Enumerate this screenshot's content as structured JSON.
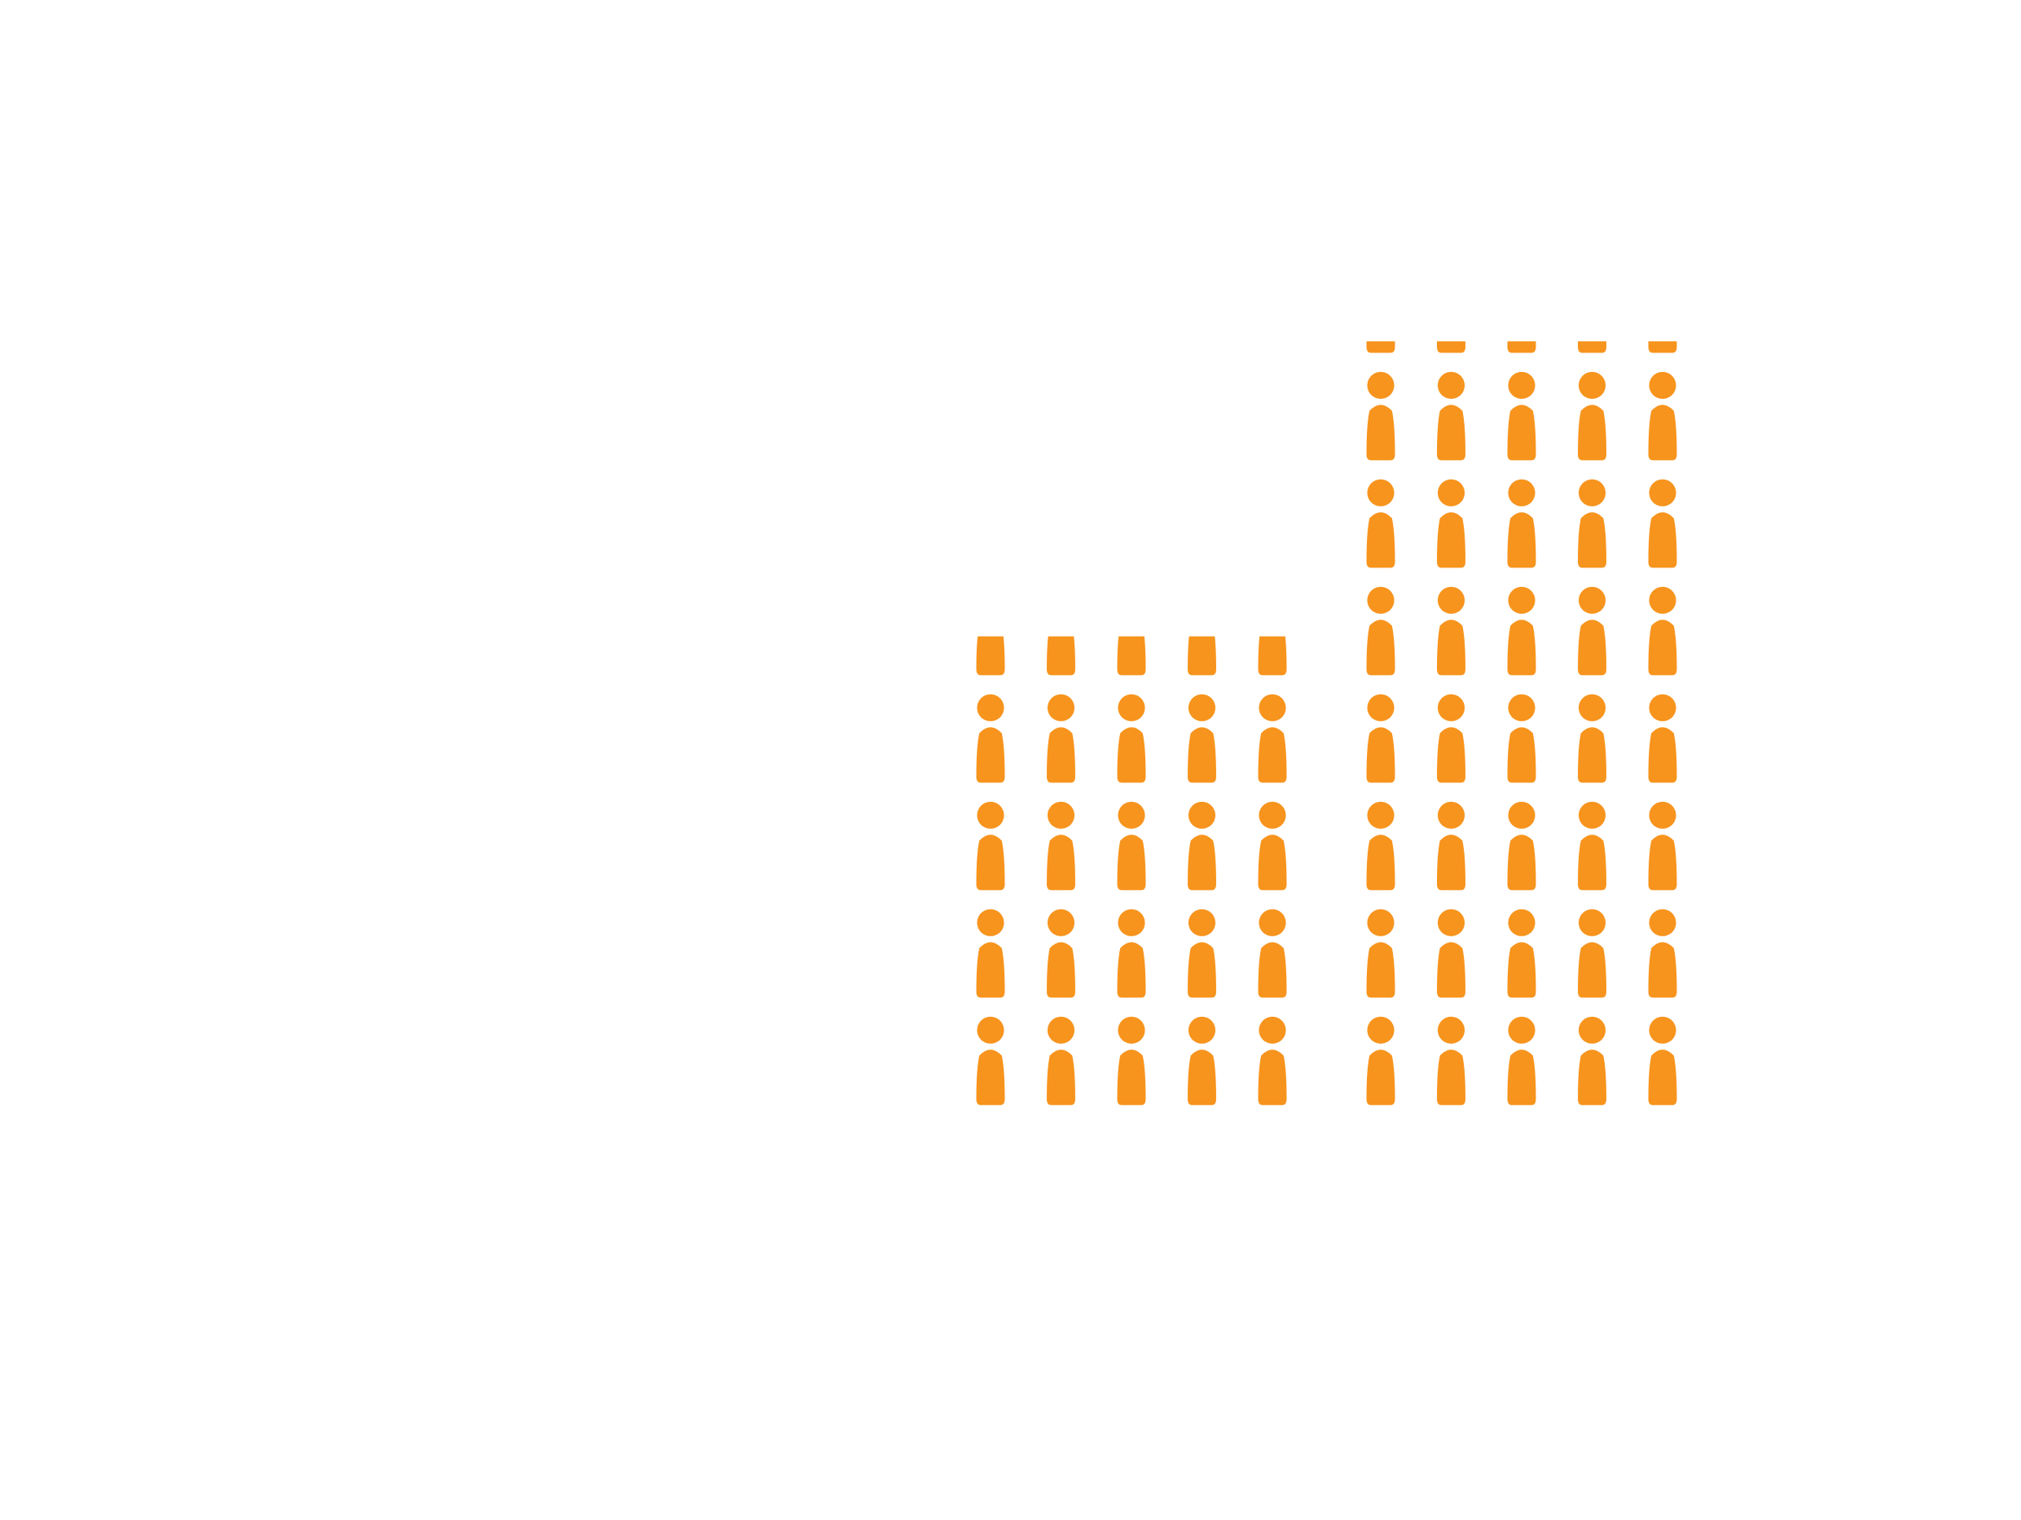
{
  "palette": {
    "background": "#ffffff",
    "icon": "#f7941d"
  },
  "icon": "person-icon",
  "chart_data": {
    "type": "pictograph",
    "columns_per_group": 5,
    "groups": [
      {
        "full_rows": 4,
        "partial_row_fraction": 0.45
      },
      {
        "full_rows": 7,
        "partial_row_fraction": 0.15
      }
    ]
  }
}
